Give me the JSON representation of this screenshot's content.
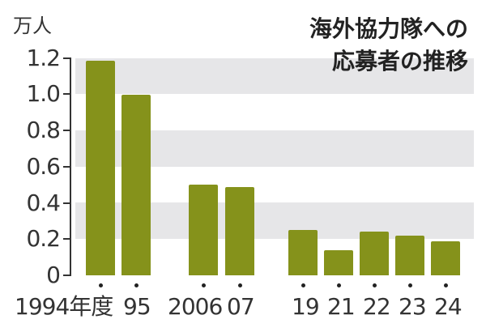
{
  "chart_data": {
    "type": "bar",
    "title": "海外協力隊への応募者の推移",
    "title_lines": [
      "海外協力隊への",
      "応募者の推移"
    ],
    "ylabel": "万人",
    "xlabel": "",
    "categories": [
      "1994年度",
      "95",
      "2006",
      "07",
      "19",
      "21",
      "22",
      "23",
      "24"
    ],
    "values": [
      1.19,
      1.0,
      0.5,
      0.49,
      0.25,
      0.14,
      0.24,
      0.22,
      0.19
    ],
    "ylim": [
      0,
      1.2
    ],
    "yticks": [
      "0",
      "0.2",
      "0.4",
      "0.6",
      "0.8",
      "1.0",
      "1.2"
    ],
    "grid": "alternating horizontal bands",
    "legend": null,
    "bar_color": "#85921b",
    "band_color": "#e6e6e8"
  },
  "labels": {
    "unit": "万人",
    "title_line1": "海外協力隊への",
    "title_line2": "応募者の推移",
    "x": [
      "1994年度",
      "95",
      "2006",
      "07",
      "19",
      "21",
      "22",
      "23",
      "24"
    ],
    "y": [
      "0",
      "0.2",
      "0.4",
      "0.6",
      "0.8",
      "1.0",
      "1.2"
    ]
  }
}
